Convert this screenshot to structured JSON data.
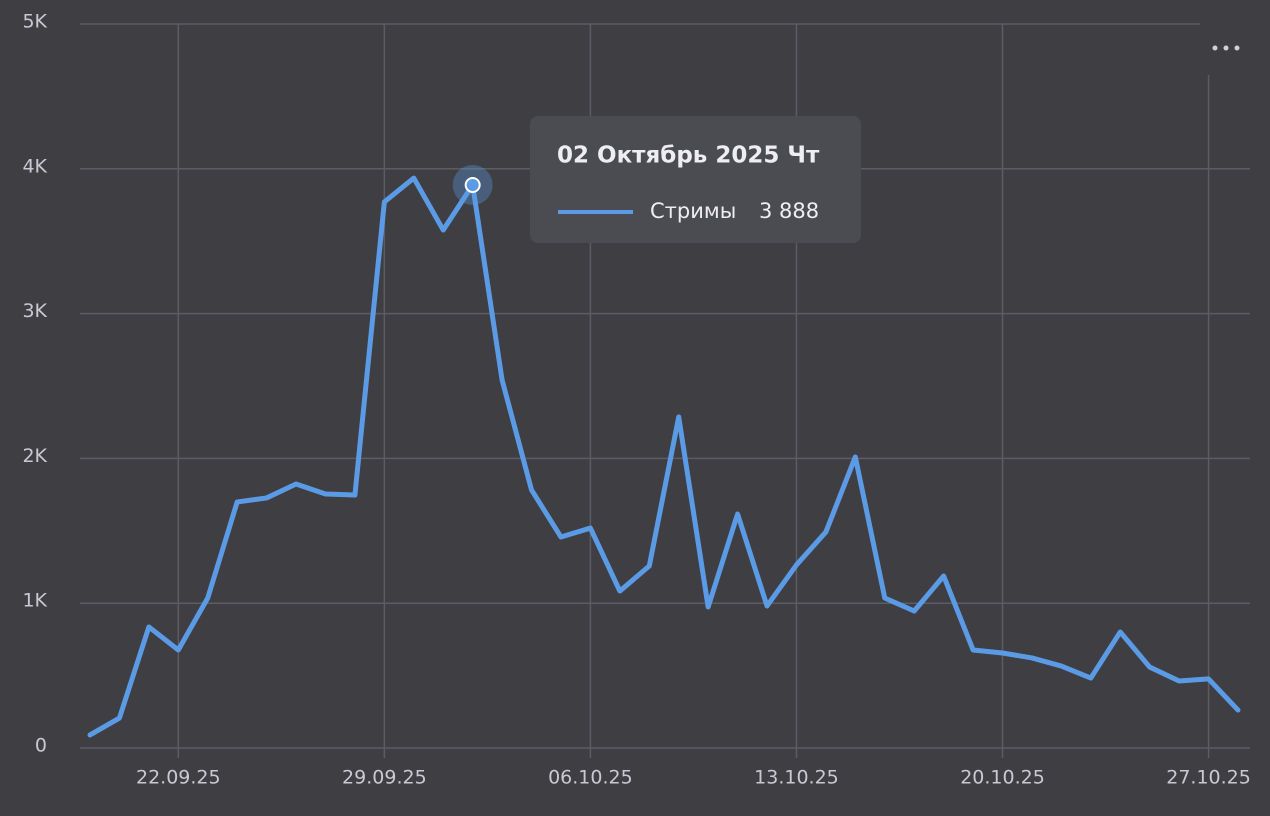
{
  "chart_data": {
    "type": "line",
    "categories": [
      null,
      null,
      null,
      "22.09.25",
      null,
      null,
      null,
      null,
      null,
      null,
      "29.09.25",
      null,
      null,
      null,
      null,
      null,
      null,
      "06.10.25",
      null,
      null,
      null,
      null,
      null,
      null,
      "13.10.25",
      null,
      null,
      null,
      null,
      null,
      null,
      "20.10.25",
      null,
      null,
      null,
      null,
      null,
      null,
      "27.10.25",
      null
    ],
    "series": [
      {
        "name": "Стримы",
        "color": "#5b9be6",
        "values": [
          90,
          207,
          836,
          677,
          1036,
          1699,
          1727,
          1823,
          1754,
          1747,
          3771,
          3936,
          3577,
          3888,
          2541,
          1782,
          1457,
          1519,
          1084,
          1257,
          2286,
          974,
          1616,
          981,
          1264,
          1492,
          2010,
          1036,
          946,
          1188,
          677,
          656,
          622,
          566,
          483,
          801,
          559,
          463,
          477,
          262
        ]
      }
    ],
    "ylim": [
      0,
      5000
    ],
    "yticks": [
      0,
      {
        "value": 1000,
        "label": "1K"
      },
      {
        "value": 2000,
        "label": "2K"
      },
      {
        "value": 3000,
        "label": "3K"
      },
      {
        "value": 4000,
        "label": "4K"
      },
      {
        "value": 5000,
        "label": "5K"
      }
    ],
    "grid": true,
    "tooltip": {
      "title": "02 Октябрь 2025 Чт",
      "value_label": "3 888"
    }
  }
}
